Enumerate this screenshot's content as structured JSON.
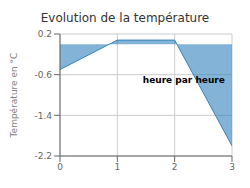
{
  "chart_data": {
    "type": "area",
    "title": "Evolution de la température",
    "ylabel": "Température en °C",
    "annotation": "heure par heure",
    "x": [
      0,
      1,
      2,
      3
    ],
    "values": [
      -0.5,
      0.08,
      0.08,
      -2.0
    ],
    "xlim": [
      0,
      3
    ],
    "ylim": [
      -2.2,
      0.2
    ],
    "xticks": [
      0,
      1,
      2,
      3
    ],
    "yticks": [
      0.2,
      -0.6,
      -1.4,
      -2.2
    ],
    "grid": true
  }
}
